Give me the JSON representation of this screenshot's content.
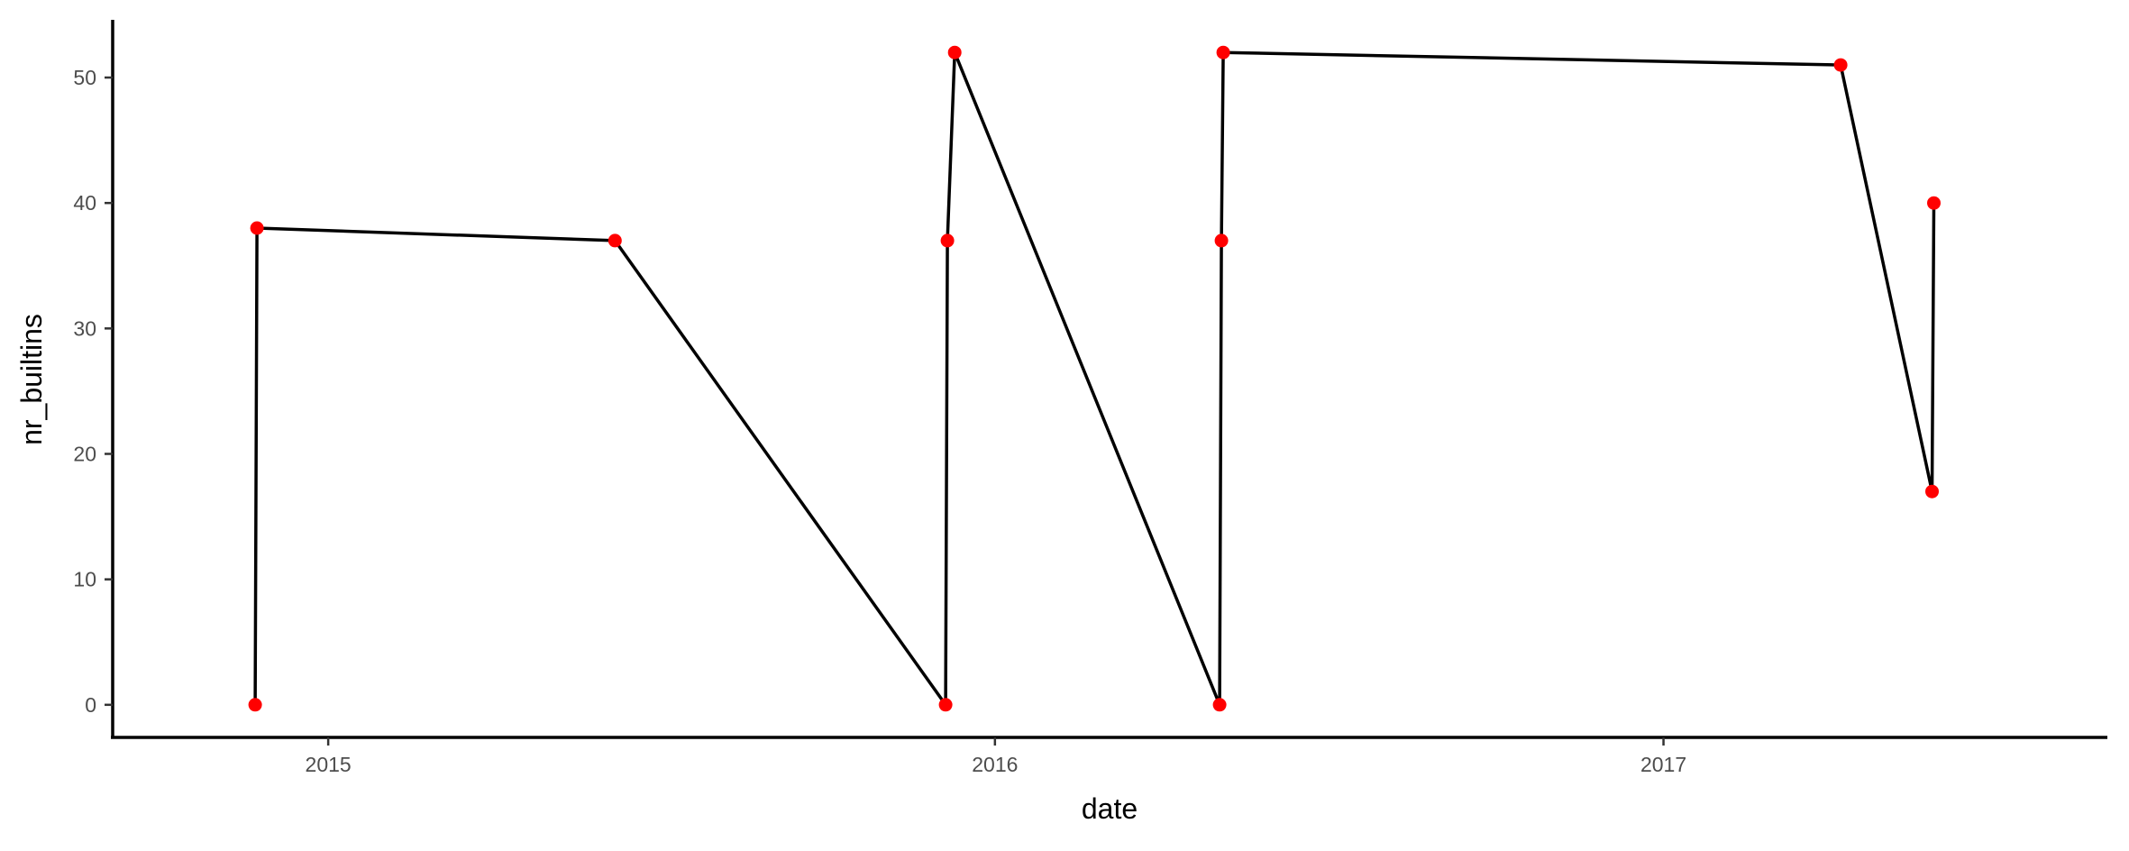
{
  "chart_data": {
    "type": "line",
    "title": "",
    "xlabel": "date",
    "ylabel": "nr_builtins",
    "x_type": "date",
    "xlim": [
      "2014-09-05",
      "2017-09-01"
    ],
    "ylim": [
      -2.6,
      54.6
    ],
    "x_ticks": [
      {
        "value": "2015-01-01",
        "label": "2015"
      },
      {
        "value": "2016-01-01",
        "label": "2016"
      },
      {
        "value": "2017-01-01",
        "label": "2017"
      }
    ],
    "y_ticks": [
      0,
      10,
      20,
      30,
      40,
      50
    ],
    "grid": false,
    "legend": "none",
    "line_color": "#000000",
    "point_color": "#ff0000",
    "series": [
      {
        "points": [
          {
            "x": "2014-11-22",
            "y": 0
          },
          {
            "x": "2014-11-23",
            "y": 38
          },
          {
            "x": "2015-06-07",
            "y": 37
          },
          {
            "x": "2015-12-05",
            "y": 0
          },
          {
            "x": "2015-12-06",
            "y": 37
          },
          {
            "x": "2015-12-10",
            "y": 52
          },
          {
            "x": "2016-05-03",
            "y": 0
          },
          {
            "x": "2016-05-04",
            "y": 37
          },
          {
            "x": "2016-05-05",
            "y": 52
          },
          {
            "x": "2017-04-08",
            "y": 51
          },
          {
            "x": "2017-05-28",
            "y": 17
          },
          {
            "x": "2017-05-29",
            "y": 40
          }
        ]
      }
    ]
  }
}
